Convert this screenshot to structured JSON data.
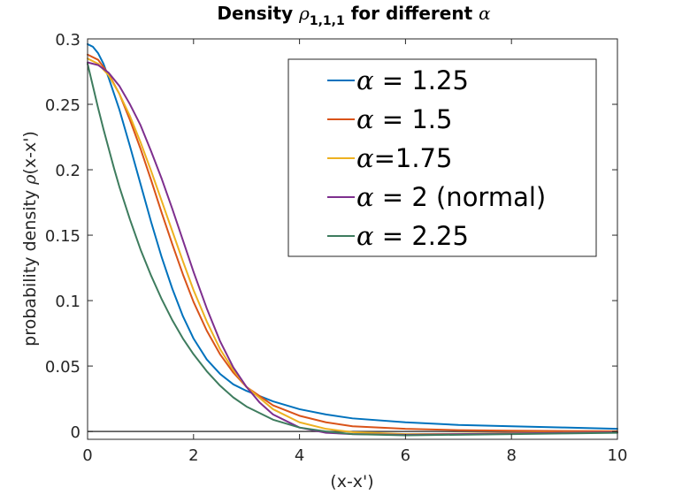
{
  "chart_data": {
    "type": "line",
    "title": {
      "prefix": "Density ",
      "rho_symbol": "ρ",
      "subscript": "1,1,1",
      "middle": " for different ",
      "alpha_symbol": "α"
    },
    "xlabel": "(x-x')",
    "ylabel": {
      "before": "probability density ",
      "symbol": "ρ",
      "after": "(x-x')"
    },
    "xlim": [
      0,
      10
    ],
    "ylim": [
      -0.006,
      0.3
    ],
    "xticks": [
      0,
      2,
      4,
      6,
      8,
      10
    ],
    "xtick_labels": [
      "0",
      "2",
      "4",
      "6",
      "8",
      "10"
    ],
    "yticks": [
      0,
      0.05,
      0.1,
      0.15,
      0.2,
      0.25,
      0.3
    ],
    "ytick_labels": [
      "0",
      "0.05",
      "0.1",
      "0.15",
      "0.2",
      "0.25",
      "0.3"
    ],
    "grid": false,
    "legend_position": "top-right",
    "zero_line": {
      "y": 0,
      "color": "#444444"
    },
    "series": [
      {
        "name": "α = 1.25",
        "label_symbol": "α",
        "label_rest": " = 1.25",
        "color": "#0072BD",
        "x": [
          0,
          0.1,
          0.2,
          0.3,
          0.4,
          0.5,
          0.6,
          0.8,
          1.0,
          1.2,
          1.4,
          1.6,
          1.8,
          2.0,
          2.25,
          2.5,
          2.75,
          3.0,
          3.5,
          4.0,
          4.5,
          5.0,
          6.0,
          7.0,
          8.0,
          9.0,
          10.0
        ],
        "y": [
          0.296,
          0.294,
          0.289,
          0.281,
          0.27,
          0.258,
          0.246,
          0.218,
          0.189,
          0.16,
          0.133,
          0.109,
          0.088,
          0.071,
          0.055,
          0.044,
          0.036,
          0.031,
          0.023,
          0.017,
          0.013,
          0.01,
          0.007,
          0.005,
          0.004,
          0.003,
          0.002
        ]
      },
      {
        "name": "α = 1.5",
        "label_symbol": "α",
        "label_rest": " = 1.5",
        "color": "#D95319",
        "x": [
          0,
          0.2,
          0.4,
          0.6,
          0.8,
          1.0,
          1.2,
          1.4,
          1.6,
          1.8,
          2.0,
          2.25,
          2.5,
          2.75,
          3.0,
          3.5,
          4.0,
          4.5,
          5.0,
          6.0,
          7.0,
          8.0,
          9.0,
          10.0
        ],
        "y": [
          0.288,
          0.284,
          0.273,
          0.258,
          0.238,
          0.216,
          0.192,
          0.167,
          0.143,
          0.12,
          0.099,
          0.077,
          0.059,
          0.045,
          0.034,
          0.02,
          0.012,
          0.007,
          0.004,
          0.002,
          0.001,
          0.0006,
          0.0003,
          0.0002
        ]
      },
      {
        "name": "α=1.75",
        "label_symbol": "α",
        "label_rest": "=1.75",
        "color": "#EDB120",
        "x": [
          0,
          0.2,
          0.4,
          0.6,
          0.8,
          1.0,
          1.2,
          1.4,
          1.6,
          1.8,
          2.0,
          2.25,
          2.5,
          2.75,
          3.0,
          3.5,
          4.0,
          4.5,
          5.0,
          6.0,
          7.0,
          8.0,
          9.0,
          10.0
        ],
        "y": [
          0.285,
          0.281,
          0.272,
          0.258,
          0.241,
          0.221,
          0.199,
          0.176,
          0.153,
          0.13,
          0.108,
          0.084,
          0.063,
          0.047,
          0.034,
          0.017,
          0.007,
          0.002,
          -0.0005,
          -0.002,
          -0.0018,
          -0.0012,
          -0.0008,
          -0.0005
        ]
      },
      {
        "name": "α = 2 (normal)",
        "label_symbol": "α",
        "label_rest": " = 2 (normal)",
        "color": "#7E2F8E",
        "x": [
          0,
          0.2,
          0.4,
          0.6,
          0.8,
          1.0,
          1.2,
          1.4,
          1.6,
          1.8,
          2.0,
          2.25,
          2.5,
          2.75,
          3.0,
          3.25,
          3.5,
          4.0,
          4.5,
          5.0,
          6.0,
          7.0,
          8.0,
          9.0,
          10.0
        ],
        "y": [
          0.282,
          0.28,
          0.274,
          0.264,
          0.25,
          0.234,
          0.214,
          0.193,
          0.17,
          0.146,
          0.122,
          0.094,
          0.069,
          0.049,
          0.034,
          0.022,
          0.013,
          0.003,
          -0.001,
          -0.002,
          -0.0025,
          -0.002,
          -0.0015,
          -0.001,
          -0.0006
        ]
      },
      {
        "name": "α = 2.25",
        "label_symbol": "α",
        "label_rest": " = 2.25",
        "color": "#3E7C5E",
        "x": [
          0,
          0.1,
          0.2,
          0.3,
          0.4,
          0.5,
          0.6,
          0.8,
          1.0,
          1.2,
          1.4,
          1.6,
          1.8,
          2.0,
          2.25,
          2.5,
          2.75,
          3.0,
          3.5,
          4.0,
          4.5,
          5.0,
          6.0,
          7.0,
          8.0,
          9.0,
          10.0
        ],
        "y": [
          0.281,
          0.264,
          0.247,
          0.231,
          0.216,
          0.201,
          0.187,
          0.162,
          0.139,
          0.119,
          0.101,
          0.085,
          0.071,
          0.059,
          0.046,
          0.035,
          0.026,
          0.019,
          0.009,
          0.003,
          0.0,
          -0.002,
          -0.003,
          -0.0025,
          -0.002,
          -0.0015,
          -0.001
        ]
      }
    ]
  }
}
